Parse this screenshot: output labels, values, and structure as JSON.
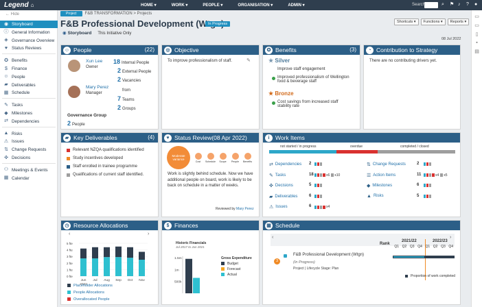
{
  "topbar": {
    "logo": "Legend",
    "nav": [
      "HOME ▾",
      "WORK ▾",
      "PEOPLE ▾",
      "ORGANISATION ▾",
      "ADMIN ▾"
    ],
    "search_label": "Search"
  },
  "sidebar": {
    "hide_label": "Hide",
    "groups": [
      [
        {
          "label": "Storyboard",
          "icon": "storyboard-icon",
          "active": true
        },
        {
          "label": "General Information",
          "icon": "info-icon"
        },
        {
          "label": "Governance Overview",
          "icon": "governance-icon"
        },
        {
          "label": "Status Reviews",
          "icon": "status-icon"
        }
      ],
      [
        {
          "label": "Benefits",
          "icon": "benefits-icon"
        },
        {
          "label": "Finance",
          "icon": "finance-icon"
        },
        {
          "label": "People",
          "icon": "people-icon"
        },
        {
          "label": "Deliverables",
          "icon": "deliverables-icon"
        },
        {
          "label": "Schedule",
          "icon": "schedule-icon"
        }
      ],
      [
        {
          "label": "Tasks",
          "icon": "tasks-icon"
        },
        {
          "label": "Milestones",
          "icon": "milestones-icon"
        },
        {
          "label": "Dependencies",
          "icon": "dependencies-icon"
        }
      ],
      [
        {
          "label": "Risks",
          "icon": "risks-icon"
        },
        {
          "label": "Issues",
          "icon": "issues-icon"
        },
        {
          "label": "Change Requests",
          "icon": "change-icon"
        },
        {
          "label": "Decisions",
          "icon": "decisions-icon"
        }
      ],
      [
        {
          "label": "Meetings & Events",
          "icon": "meetings-icon"
        },
        {
          "label": "Calendar",
          "icon": "calendar-icon"
        }
      ]
    ]
  },
  "header": {
    "tag": "Project",
    "breadcrumb": "F&B TRANSFORMATION > Projects",
    "title": "F&B Professional Development (Wtgn)",
    "status": "In Progress",
    "view": "Storyboard",
    "view_desc": "This Initiative Only",
    "buttons": [
      "Shortcuts ▾",
      "Functions ▾",
      "Reports ▾"
    ],
    "date": "08 Jul 2022"
  },
  "people": {
    "title": "People",
    "count": "(22)",
    "owner_name": "Xun Lee",
    "owner_role": "Owner",
    "manager_name": "Mary Perez",
    "manager_role": "Manager",
    "stats": [
      {
        "n": "18",
        "label": "Internal People"
      },
      {
        "n": "2",
        "label": "External People"
      },
      {
        "n": "2",
        "label": "Vacancies"
      }
    ],
    "from": "from",
    "teams": [
      {
        "n": "7",
        "label": "Teams"
      },
      {
        "n": "2",
        "label": "Groups"
      }
    ],
    "gov_title": "Governance Group",
    "gov_n": "2",
    "gov_label": "People"
  },
  "objective": {
    "title": "Objective",
    "text": "To improve professionalism of staff."
  },
  "benefits": {
    "title": "Benefits",
    "count": "(3)",
    "silver": "Silver",
    "bronze": "Bronze",
    "silver_items": [
      "Improve staff engagement",
      "Improved professionalism of Wellington food & beverage staff"
    ],
    "bronze_items": [
      "Cost savings from increased staff stability rate"
    ]
  },
  "contribution": {
    "title": "Contribution to Strategy",
    "text": "There are no contributing drivers yet."
  },
  "deliverables": {
    "title": "Key Deliverables",
    "count": "(4)",
    "items": [
      {
        "label": "Relevant NZQA qualifications identified",
        "color": "#d9312f"
      },
      {
        "label": "Study incentives developed",
        "color": "#f08a24"
      },
      {
        "label": "Staff enrolled in trainee programme",
        "color": "#2c5f87"
      },
      {
        "label": "Qualifications of current staff identified.",
        "color": "#9e9e9e"
      }
    ]
  },
  "status_review": {
    "title": "Status Review(08 Apr 2022)",
    "overall": "Moderate variance",
    "dots": [
      "Cost",
      "Schedule",
      "Scope",
      "People",
      "Benefits"
    ],
    "text": "Work is slightly behind schedule. Now we have additional people on board, work is likely to be back on schedule in a matter of weeks.",
    "reviewed": "Reviewed by",
    "reviewer": "Mary Perez"
  },
  "work_items": {
    "title": "Work Items",
    "legend": [
      "not started / in progress",
      "overdue",
      "completed / closed"
    ],
    "left": [
      {
        "label": "Dependencies",
        "n": "2",
        "icon": "dependencies-icon"
      },
      {
        "label": "Tasks",
        "n": "18",
        "icon": "tasks-icon",
        "extra": [
          "x6",
          "x10"
        ]
      },
      {
        "label": "Decisions",
        "n": "5",
        "icon": "decisions-icon"
      },
      {
        "label": "Deliverables",
        "n": "6",
        "icon": "deliverables-icon"
      },
      {
        "label": "Issues",
        "n": "6",
        "icon": "issues-icon",
        "extra": [
          "x4"
        ]
      }
    ],
    "right": [
      {
        "label": "Change Requests",
        "n": "2",
        "icon": "change-icon"
      },
      {
        "label": "Action Items",
        "n": "11",
        "icon": "action-icon",
        "extra": [
          "x4",
          "x5"
        ]
      },
      {
        "label": "Milestones",
        "n": "6",
        "icon": "milestones-icon"
      },
      {
        "label": "Risks",
        "n": "5",
        "icon": "risks-icon"
      }
    ]
  },
  "resources": {
    "title": "Resource Allocations",
    "y_ticks": [
      "5 fte",
      "4 fte",
      "3 fte",
      "2 fte",
      "1 fte",
      "0 fte"
    ],
    "months": [
      "Jun\n2022",
      "Jul",
      "Aug",
      "Sep",
      "Oct",
      "Nov"
    ],
    "legend": [
      "Placeholder Allocations",
      "People Allocations",
      "Overallocated People"
    ]
  },
  "finances": {
    "title": "Finances",
    "chart_title": "Historic Financials",
    "chart_sub": "Jul 2017 to Jun 2021",
    "y_ticks": [
      "1.5m",
      "1m",
      "500k"
    ],
    "legend_title": "Gross Expenditure",
    "legend": [
      "Budget",
      "Forecast",
      "Actual"
    ]
  },
  "schedule": {
    "title": "Schedule",
    "rank": "Rank",
    "years": [
      "2021/22",
      "2022/23"
    ],
    "quarters": [
      "Q1",
      "Q2",
      "Q3",
      "Q4",
      "Q1",
      "Q2",
      "Q3",
      "Q4"
    ],
    "row_rank": "3",
    "row_title": "F&B Professional Development (Wtgn)",
    "row_status": "(In Progress)",
    "row_meta": "Project | Lifecycle Stage: Plan",
    "legend": "Proportion of work completed"
  },
  "chart_data": [
    {
      "type": "bar",
      "title": "",
      "categories": [
        "Jun 2022",
        "Jul",
        "Aug",
        "Sep",
        "Oct",
        "Nov"
      ],
      "series": [
        {
          "name": "Placeholder Allocations",
          "values": [
            1.5,
            1.7,
            1.5,
            1.6,
            1.6,
            1.2
          ]
        },
        {
          "name": "People Allocations",
          "values": [
            2.7,
            2.7,
            2.9,
            2.9,
            2.8,
            2.5
          ]
        }
      ],
      "ylim": [
        0,
        5
      ],
      "ylabel": "",
      "xlabel": ""
    },
    {
      "type": "bar",
      "title": "Historic Financials",
      "categories": [
        "Budget",
        "Forecast",
        "Actual"
      ],
      "values": [
        1450000,
        0,
        650000
      ],
      "ylim": [
        0,
        1500000
      ]
    }
  ]
}
